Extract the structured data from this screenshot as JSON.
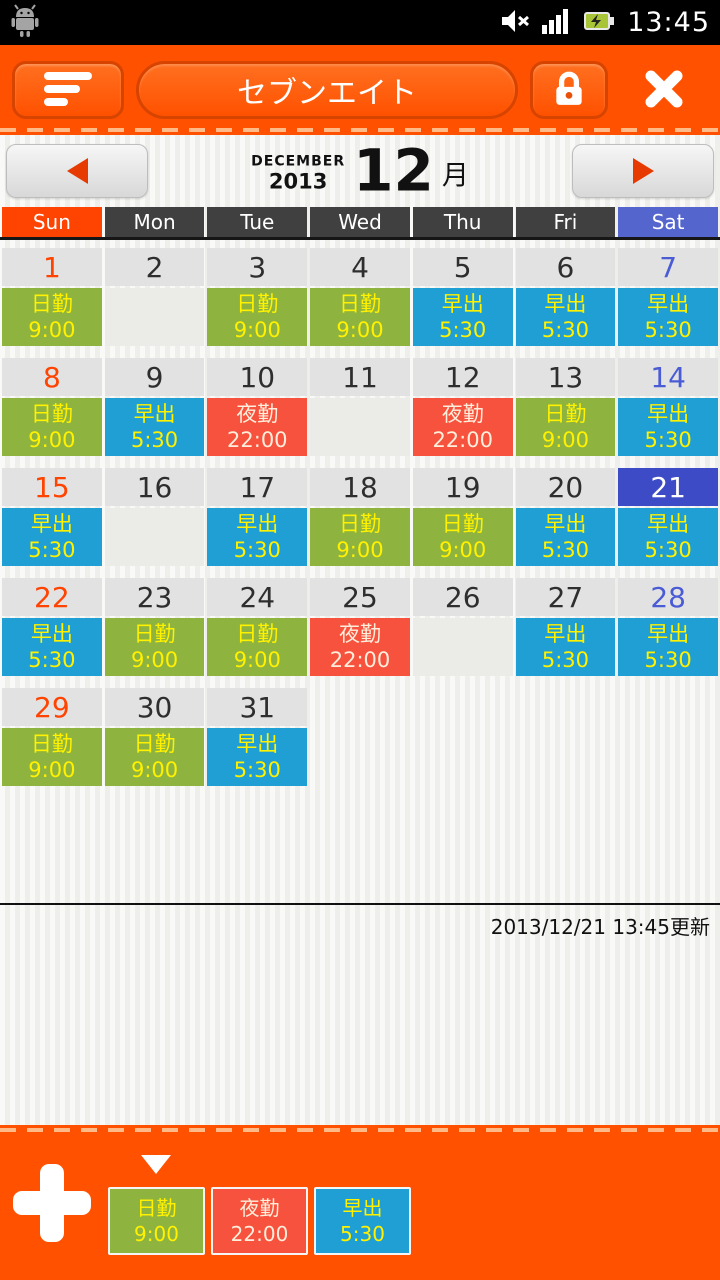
{
  "status_bar": {
    "time": "13:45"
  },
  "header": {
    "title": "セブンエイト"
  },
  "month_nav": {
    "month_name": "DECEMBER",
    "year": "2013",
    "month_number": "12",
    "month_suffix": "月"
  },
  "weekday_header": [
    {
      "label": "Sun",
      "type": "sun"
    },
    {
      "label": "Mon",
      "type": "weekday"
    },
    {
      "label": "Tue",
      "type": "weekday"
    },
    {
      "label": "Wed",
      "type": "weekday"
    },
    {
      "label": "Thu",
      "type": "weekday"
    },
    {
      "label": "Fri",
      "type": "weekday"
    },
    {
      "label": "Sat",
      "type": "sat"
    }
  ],
  "shift_types": {
    "nikkin": {
      "label": "日勤",
      "time": "9:00",
      "bg": "#8EB43F",
      "text": "#FFF100"
    },
    "yakin": {
      "label": "夜勤",
      "time": "22:00",
      "bg": "#F7523E",
      "text": "#FFEEDB"
    },
    "hayade": {
      "label": "早出",
      "time": "5:30",
      "bg": "#1F9FD4",
      "text": "#FFF100"
    }
  },
  "weeks": [
    [
      {
        "day": "1",
        "color": "sun",
        "shift": "nikkin"
      },
      {
        "day": "2",
        "color": "",
        "shift": "none"
      },
      {
        "day": "3",
        "color": "",
        "shift": "nikkin"
      },
      {
        "day": "4",
        "color": "",
        "shift": "nikkin"
      },
      {
        "day": "5",
        "color": "",
        "shift": "hayade"
      },
      {
        "day": "6",
        "color": "",
        "shift": "hayade"
      },
      {
        "day": "7",
        "color": "sat",
        "shift": "hayade"
      }
    ],
    [
      {
        "day": "8",
        "color": "sun",
        "shift": "nikkin"
      },
      {
        "day": "9",
        "color": "",
        "shift": "hayade"
      },
      {
        "day": "10",
        "color": "",
        "shift": "yakin"
      },
      {
        "day": "11",
        "color": "",
        "shift": "none"
      },
      {
        "day": "12",
        "color": "",
        "shift": "yakin"
      },
      {
        "day": "13",
        "color": "",
        "shift": "nikkin"
      },
      {
        "day": "14",
        "color": "sat",
        "shift": "hayade"
      }
    ],
    [
      {
        "day": "15",
        "color": "sun",
        "shift": "hayade"
      },
      {
        "day": "16",
        "color": "",
        "shift": "none"
      },
      {
        "day": "17",
        "color": "",
        "shift": "hayade"
      },
      {
        "day": "18",
        "color": "",
        "shift": "nikkin"
      },
      {
        "day": "19",
        "color": "",
        "shift": "nikkin"
      },
      {
        "day": "20",
        "color": "",
        "shift": "hayade"
      },
      {
        "day": "21",
        "color": "sat",
        "selected": true,
        "shift": "hayade"
      }
    ],
    [
      {
        "day": "22",
        "color": "sun",
        "shift": "hayade"
      },
      {
        "day": "23",
        "color": "",
        "shift": "nikkin"
      },
      {
        "day": "24",
        "color": "",
        "shift": "nikkin"
      },
      {
        "day": "25",
        "color": "",
        "shift": "yakin"
      },
      {
        "day": "26",
        "color": "",
        "shift": "none"
      },
      {
        "day": "27",
        "color": "",
        "shift": "hayade"
      },
      {
        "day": "28",
        "color": "sat",
        "shift": "hayade"
      }
    ],
    [
      {
        "day": "29",
        "color": "sun",
        "shift": "nikkin"
      },
      {
        "day": "30",
        "color": "",
        "shift": "nikkin"
      },
      {
        "day": "31",
        "color": "",
        "shift": "hayade"
      },
      {
        "day": ""
      },
      {
        "day": ""
      },
      {
        "day": ""
      },
      {
        "day": ""
      }
    ]
  ],
  "footer": {
    "updated": "2013/12/21 13:45更新"
  },
  "bottom_bar": {
    "shifts": [
      "nikkin",
      "yakin",
      "hayade"
    ]
  },
  "colors": {
    "accent": "#FF5100",
    "arrow_red": "#E63A00",
    "sunday_text": "#FF4300",
    "saturday_text": "#4A5BD6",
    "selected_day_bg": "#3D4BC6",
    "weekday_header_bg": "#404040",
    "sunday_header_bg": "#FF4300",
    "saturday_header_bg": "#5565CE"
  }
}
